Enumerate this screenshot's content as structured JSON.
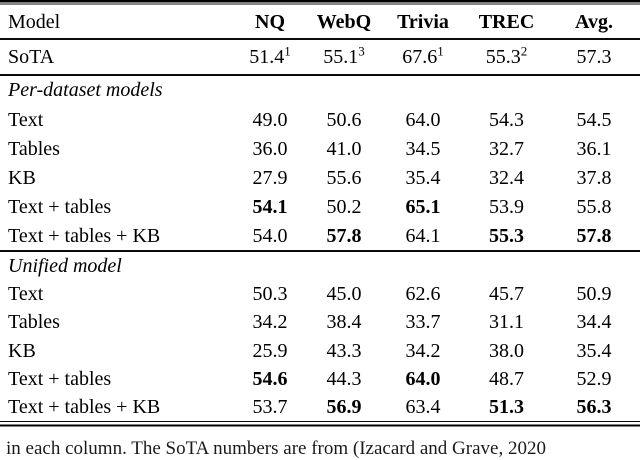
{
  "table": {
    "columns": [
      "Model",
      "NQ",
      "WebQ",
      "Trivia",
      "TREC",
      "Avg."
    ],
    "sota_row": {
      "label": "SoTA",
      "cells": [
        {
          "v": "51.4",
          "sup": "1"
        },
        {
          "v": "55.1",
          "sup": "3"
        },
        {
          "v": "67.6",
          "sup": "1"
        },
        {
          "v": "55.3",
          "sup": "2"
        },
        {
          "v": "57.3",
          "sup": ""
        }
      ]
    },
    "sections": [
      {
        "label": "Per-dataset models",
        "rows": [
          {
            "label": "Text",
            "cells": [
              "49.0",
              "50.6",
              "64.0",
              "54.3",
              "54.5"
            ]
          },
          {
            "label": "Tables",
            "cells": [
              "36.0",
              "41.0",
              "34.5",
              "32.7",
              "36.1"
            ]
          },
          {
            "label": "KB",
            "cells": [
              "27.9",
              "55.6",
              "35.4",
              "32.4",
              "37.8"
            ]
          },
          {
            "label": "Text + tables",
            "cells": [
              "54.1",
              "50.2",
              "65.1",
              "53.9",
              "55.8"
            ]
          },
          {
            "label": "Text + tables + KB",
            "cells": [
              "54.0",
              "57.8",
              "64.1",
              "55.3",
              "57.8"
            ]
          }
        ]
      },
      {
        "label": "Unified model",
        "rows": [
          {
            "label": "Text",
            "cells": [
              "50.3",
              "45.0",
              "62.6",
              "45.7",
              "50.9"
            ]
          },
          {
            "label": "Tables",
            "cells": [
              "34.2",
              "38.4",
              "33.7",
              "31.1",
              "34.4"
            ]
          },
          {
            "label": "KB",
            "cells": [
              "25.9",
              "43.3",
              "34.2",
              "38.0",
              "35.4"
            ]
          },
          {
            "label": "Text + tables",
            "cells": [
              "54.6",
              "44.3",
              "64.0",
              "48.7",
              "52.9"
            ]
          },
          {
            "label": "Text + tables + KB",
            "cells": [
              "53.7",
              "56.9",
              "63.4",
              "51.3",
              "56.3"
            ]
          }
        ]
      }
    ],
    "caption_fragment": "in each column. The SoTA numbers are from (Izacard and Grave, 2020"
  }
}
